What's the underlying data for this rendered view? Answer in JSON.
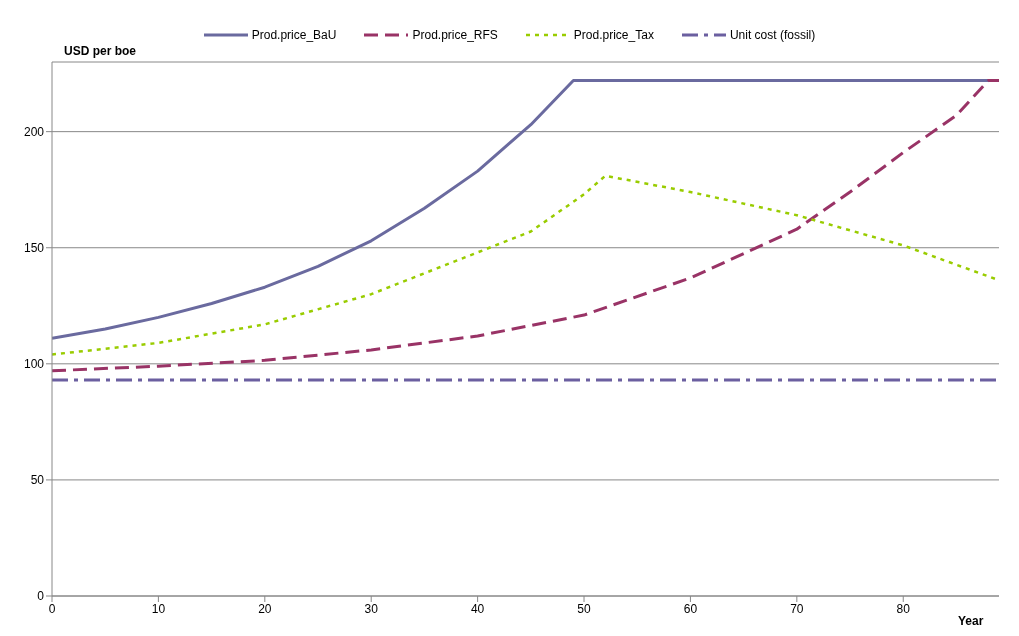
{
  "chart_data": {
    "type": "line",
    "ylabel": "USD per boe",
    "xlabel": "Year",
    "xlim": [
      0,
      89
    ],
    "xticks": [
      0,
      10,
      20,
      30,
      40,
      50,
      60,
      70,
      80
    ],
    "ylim": [
      0,
      230
    ],
    "yticks": [
      0,
      50,
      100,
      150,
      200
    ],
    "grid": "y",
    "legend": "top",
    "marker": "none",
    "series": [
      {
        "name": "Prod.price_BaU",
        "color": "#6a6a9f",
        "line_style": "solid",
        "x": [
          0,
          5,
          10,
          15,
          20,
          25,
          30,
          35,
          40,
          45,
          49,
          89
        ],
        "values": [
          111,
          115,
          120,
          126,
          133,
          142,
          153,
          167,
          183,
          203,
          222,
          222
        ]
      },
      {
        "name": "Prod.price_RFS",
        "color": "#993366",
        "line_style": "dashed",
        "x": [
          0,
          10,
          20,
          30,
          40,
          50,
          60,
          70,
          75,
          80,
          85,
          88,
          89
        ],
        "values": [
          97,
          99,
          101.5,
          106,
          112,
          121,
          137,
          158,
          174,
          191,
          207,
          222,
          222
        ]
      },
      {
        "name": "Prod.price_Tax",
        "color": "#99cc00",
        "line_style": "dotted",
        "x": [
          0,
          10,
          20,
          30,
          40,
          45,
          50,
          52,
          60,
          70,
          80,
          89
        ],
        "values": [
          104,
          109,
          117,
          130,
          148,
          157,
          173,
          181,
          174,
          164,
          151,
          136
        ]
      },
      {
        "name": "Unit cost (fossil)",
        "color": "#6b5fa0",
        "line_style": "dashdot",
        "x": [
          0,
          89
        ],
        "values": [
          93,
          93
        ]
      }
    ]
  }
}
